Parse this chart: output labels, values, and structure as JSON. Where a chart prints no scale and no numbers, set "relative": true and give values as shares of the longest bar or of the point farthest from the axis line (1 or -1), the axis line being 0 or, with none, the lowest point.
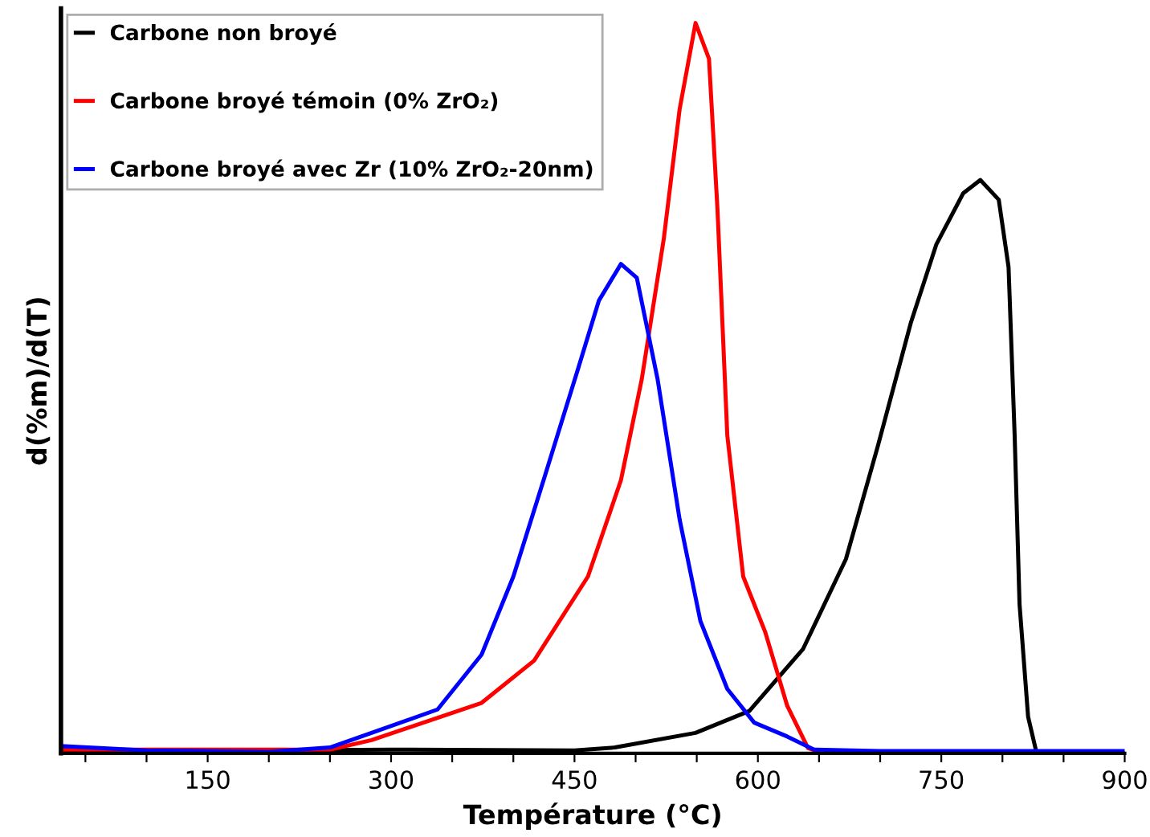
{
  "chart_data": {
    "type": "line",
    "relative": true,
    "xlabel": "Température (°C)",
    "ylabel": "d(%m)/d(T)",
    "xlim": [
      30,
      900
    ],
    "xticks": [
      {
        "value": 50,
        "label": null
      },
      {
        "value": 100,
        "label": null
      },
      150,
      {
        "value": 200,
        "label": null
      },
      {
        "value": 250,
        "label": null
      },
      300,
      {
        "value": 350,
        "label": null
      },
      {
        "value": 400,
        "label": null
      },
      450,
      {
        "value": 500,
        "label": null
      },
      {
        "value": 550,
        "label": null
      },
      600,
      {
        "value": 650,
        "label": null
      },
      {
        "value": 700,
        "label": null
      },
      750,
      {
        "value": 800,
        "label": null
      },
      {
        "value": 850,
        "label": null
      },
      900
    ],
    "legend": "top left",
    "grid": false,
    "marker": "none",
    "line_style": "solid",
    "series": [
      {
        "name": "Carbone non broyé",
        "color": "#000000",
        "x": [
          30,
          300,
          450,
          483,
          549,
          593,
          637,
          672,
          698,
          725,
          746,
          768,
          782,
          797,
          805,
          810,
          814,
          821,
          828,
          900
        ],
        "values": [
          0.002,
          0.005,
          0.004,
          0.008,
          0.028,
          0.058,
          0.143,
          0.266,
          0.42,
          0.589,
          0.697,
          0.767,
          0.785,
          0.758,
          0.666,
          0.435,
          0.204,
          0.05,
          0,
          0
        ]
      },
      {
        "name": "Carbone broyé témoin (0% ZrO₂)",
        "color": "#ff0000",
        "x": [
          30,
          250,
          284,
          374,
          417,
          461,
          488,
          505,
          523,
          536,
          549,
          560,
          567,
          575,
          588,
          606,
          624,
          641,
          650
        ],
        "values": [
          0.005,
          0.005,
          0.018,
          0.069,
          0.127,
          0.242,
          0.374,
          0.512,
          0.704,
          0.882,
          1,
          0.951,
          0.743,
          0.435,
          0.242,
          0.166,
          0.065,
          0.007,
          0.002
        ]
      },
      {
        "name": "Carbone broyé avec Zr (10% ZrO₂-20nm)",
        "color": "#0000ff",
        "x": [
          30,
          100,
          200,
          250,
          284,
          338,
          374,
          400,
          426,
          453,
          470,
          488,
          501,
          518,
          536,
          553,
          575,
          597,
          624,
          646,
          700,
          900
        ],
        "values": [
          0.01,
          0.004,
          0.002,
          0.008,
          0.028,
          0.06,
          0.135,
          0.242,
          0.381,
          0.527,
          0.62,
          0.67,
          0.651,
          0.512,
          0.32,
          0.181,
          0.088,
          0.042,
          0.023,
          0.005,
          0.003,
          0.003
        ]
      }
    ]
  }
}
